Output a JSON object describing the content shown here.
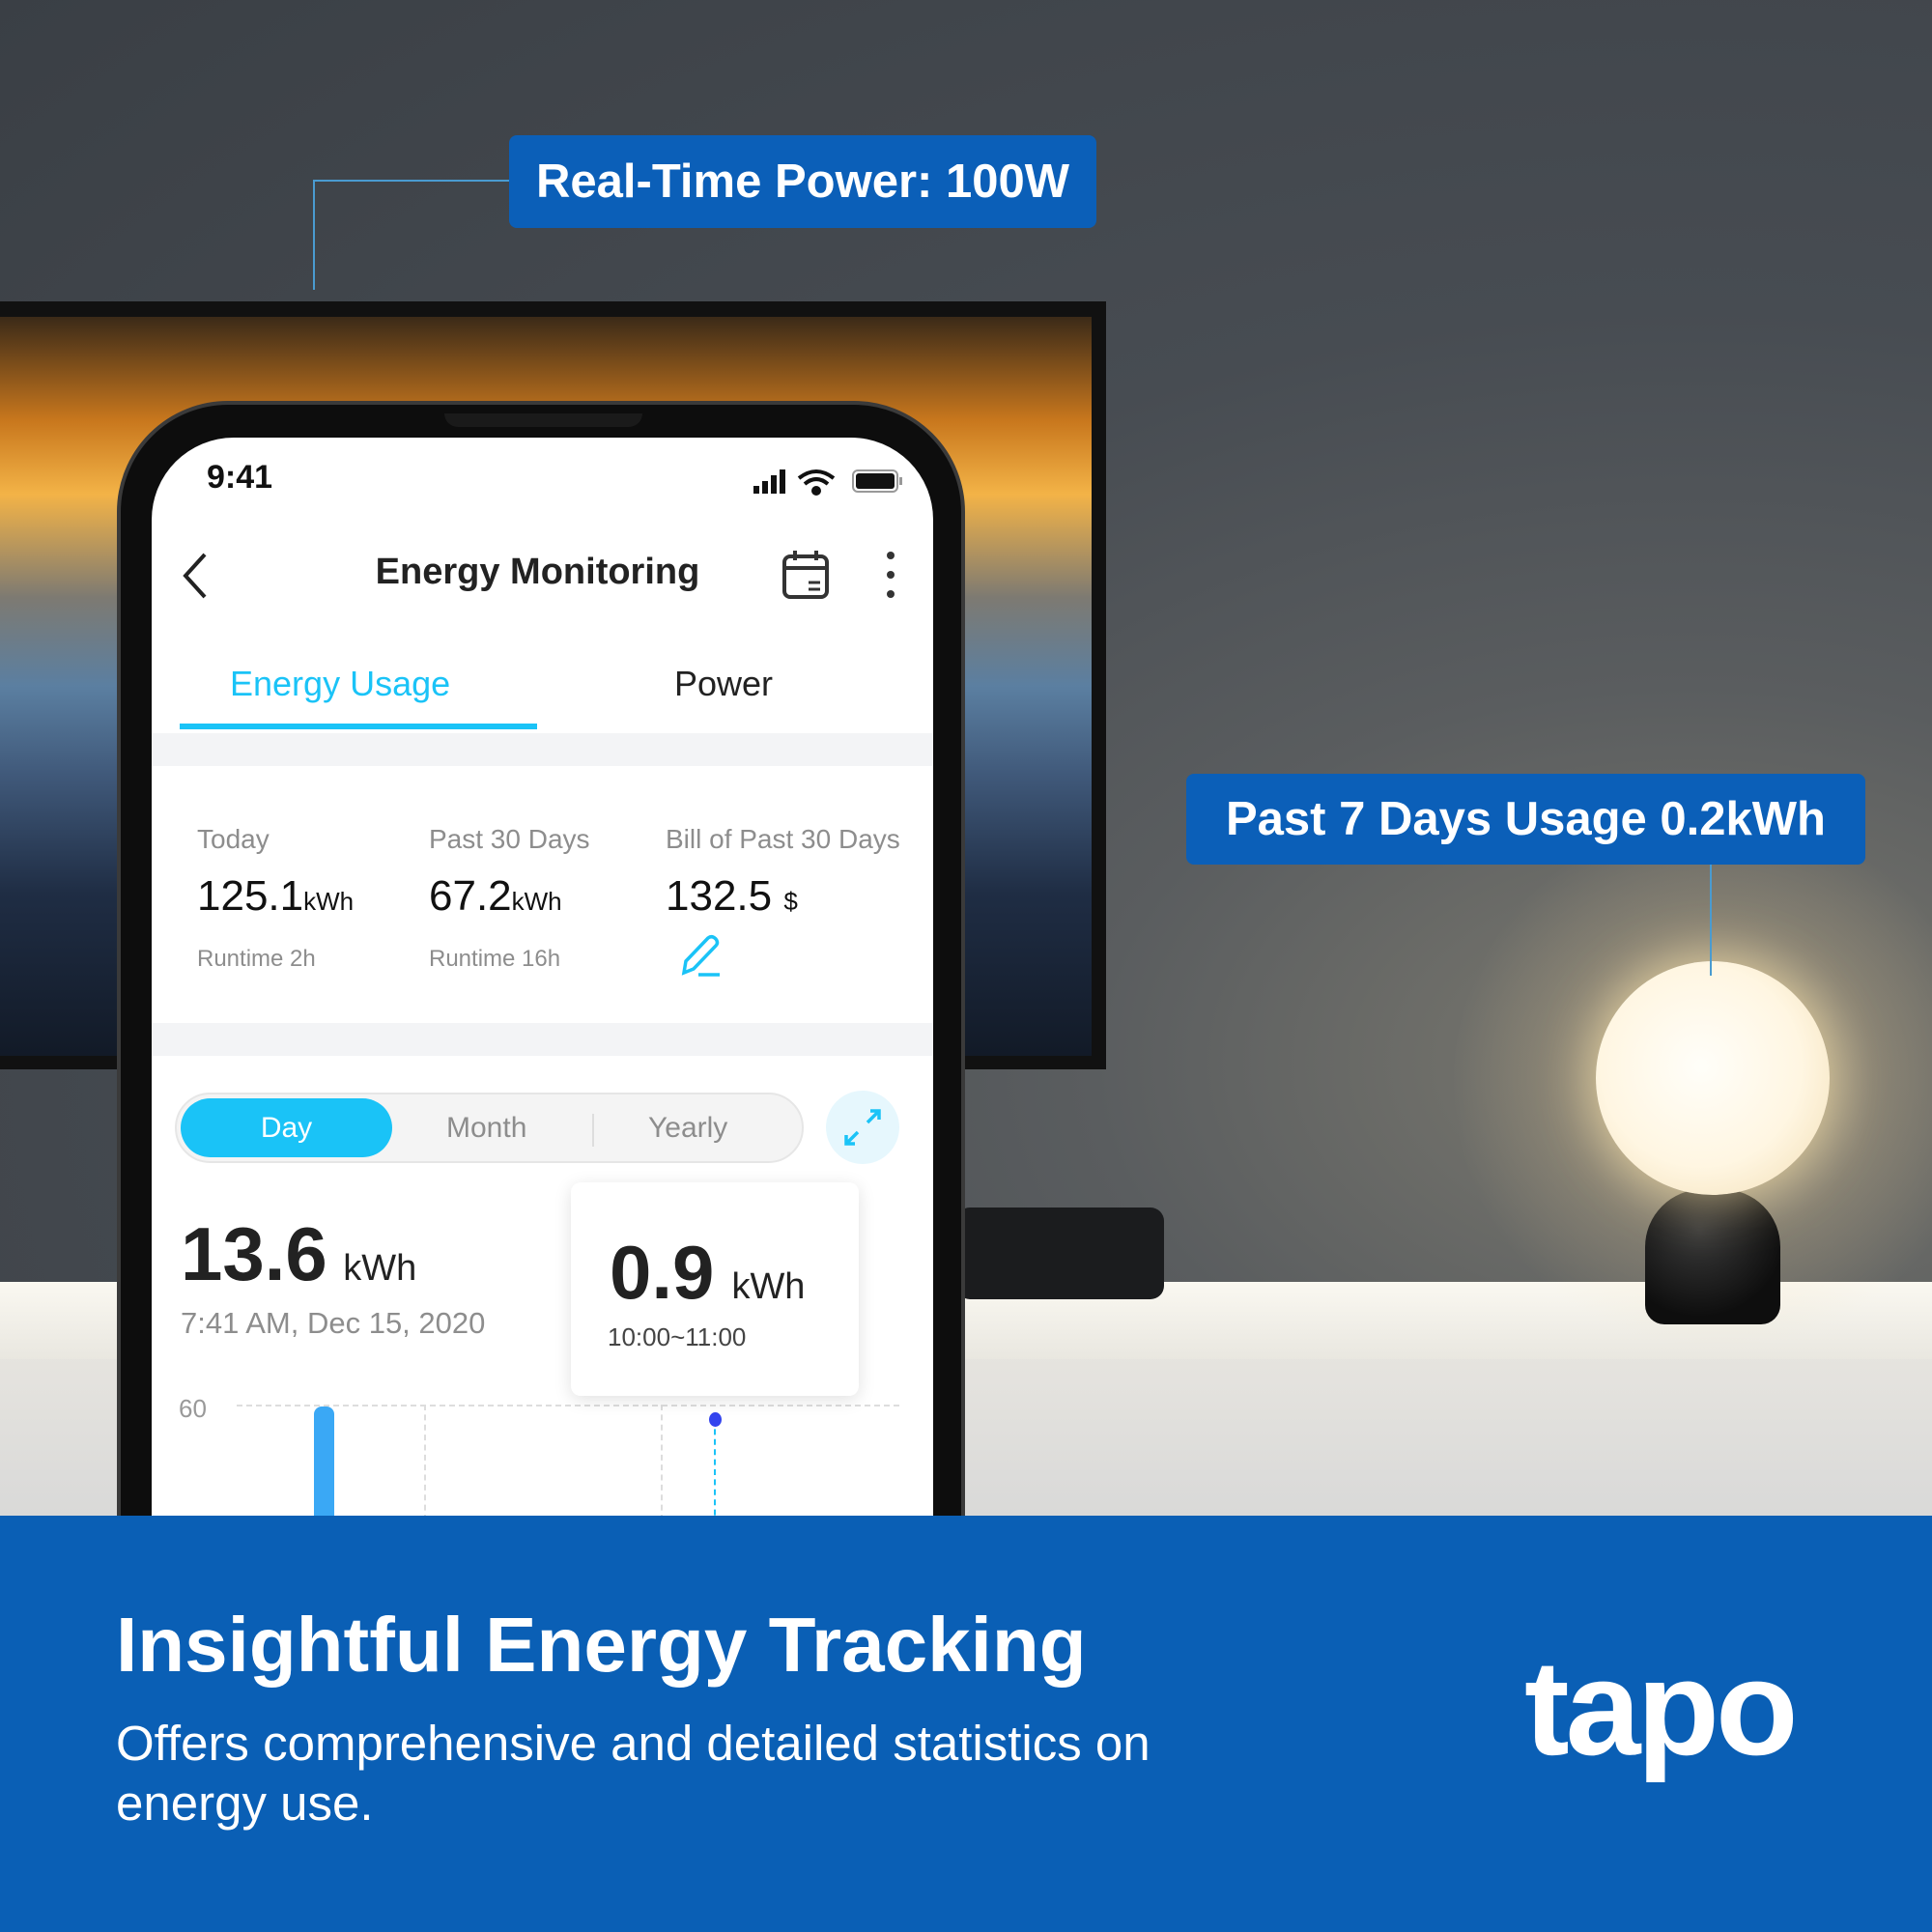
{
  "callouts": {
    "realtime": "Real-Time Power: 100W",
    "past7": "Past 7 Days Usage 0.2kWh"
  },
  "status_bar": {
    "time": "9:41",
    "icons": [
      "signal-icon",
      "wifi-icon",
      "battery-icon"
    ]
  },
  "header": {
    "title": "Energy Monitoring",
    "icons": [
      "back-chevron-icon",
      "calendar-icon",
      "more-vertical-icon"
    ]
  },
  "tabs": [
    {
      "label": "Energy Usage",
      "active": true
    },
    {
      "label": "Power",
      "active": false
    }
  ],
  "stats": [
    {
      "label": "Today",
      "value": "125.1",
      "unit": "kWh",
      "sub": "Runtime 2h"
    },
    {
      "label": "Past 30 Days",
      "value": "67.2",
      "unit": "kWh",
      "sub": "Runtime 16h"
    },
    {
      "label": "Bill of Past 30 Days",
      "value": "132.5",
      "unit": "$",
      "icon": "pencil-icon"
    }
  ],
  "period": {
    "options": [
      "Day",
      "Month",
      "Yearly"
    ],
    "selected": "Day",
    "expand_icon": "expand-icon"
  },
  "summary": {
    "value": "13.6",
    "unit": "kWh",
    "timestamp": "7:41 AM, Dec 15, 2020"
  },
  "tooltip": {
    "value": "0.9",
    "unit": "kWh",
    "range": "10:00~11:00"
  },
  "chart": {
    "y_tick": "60"
  },
  "colors": {
    "accent": "#1ac3f7",
    "brand_blue": "#0a5fb5",
    "bar": "#3aa8f5",
    "dot": "#3344ee"
  },
  "banner": {
    "title": "Insightful Energy Tracking",
    "subtitle": "Offers comprehensive and detailed statistics on energy use.",
    "logo": "tapo"
  }
}
